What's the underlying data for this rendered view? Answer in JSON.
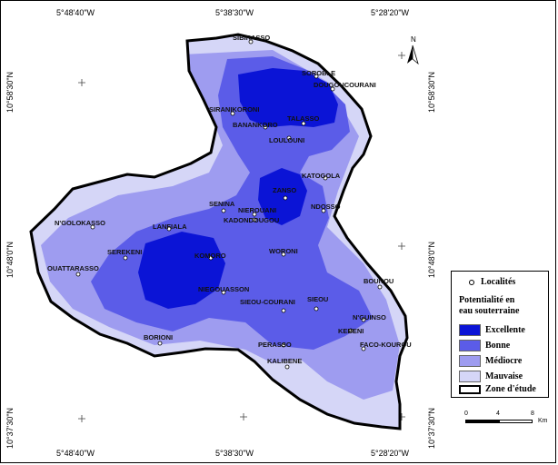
{
  "coordinates": {
    "top": [
      "5°48'40\"W",
      "5°38'30\"W",
      "5°28'20\"W"
    ],
    "bottom": [
      "5°48'40\"W",
      "5°38'30\"W",
      "5°28'20\"W"
    ],
    "left": [
      "10°58'30\"N",
      "10°48'0\"N",
      "10°37'30\"N"
    ],
    "right": [
      "10°58'30\"N",
      "10°48'0\"N",
      "10°37'30\"N"
    ]
  },
  "north_label": "N",
  "places": [
    {
      "name": "SIBIRASSO"
    },
    {
      "name": "SOROBLE"
    },
    {
      "name": "DOUGOUCOURANI"
    },
    {
      "name": "SIRANIKORONI"
    },
    {
      "name": "BANANKORO"
    },
    {
      "name": "TALASSO"
    },
    {
      "name": "LOULOUNI"
    },
    {
      "name": "KATOGOLA"
    },
    {
      "name": "ZANSO"
    },
    {
      "name": "NDOSSO"
    },
    {
      "name": "SENINA"
    },
    {
      "name": "NIEROUANI"
    },
    {
      "name": "KADONDOUGOU"
    },
    {
      "name": "N'GOLOKASSO"
    },
    {
      "name": "LANFIALA"
    },
    {
      "name": "SEREKENI"
    },
    {
      "name": "KOMORO"
    },
    {
      "name": "WORONI"
    },
    {
      "name": "OUATTARASSO"
    },
    {
      "name": "BOUNOU"
    },
    {
      "name": "NIEGOUASSON"
    },
    {
      "name": "SIEOU-COURANI"
    },
    {
      "name": "SIEOU"
    },
    {
      "name": "N'GUINSO"
    },
    {
      "name": "KEBENI"
    },
    {
      "name": "BORIONI"
    },
    {
      "name": "PERASSO"
    },
    {
      "name": "FACO-KOUROU"
    },
    {
      "name": "KALIBENE"
    }
  ],
  "legend": {
    "localities": "Localités",
    "title_line1": "Potentialité en",
    "title_line2": "eau souterraine",
    "classes": [
      {
        "label": "Excellente",
        "color": "#0b14d6"
      },
      {
        "label": "Bonne",
        "color": "#5b5ce8"
      },
      {
        "label": "Médiocre",
        "color": "#9e9cf0"
      },
      {
        "label": "Mauvaise",
        "color": "#d5d6f7"
      }
    ],
    "study_zone": "Zone d'étude"
  },
  "scale": {
    "ticks": [
      "0",
      "4",
      "8"
    ],
    "unit": "Km"
  }
}
